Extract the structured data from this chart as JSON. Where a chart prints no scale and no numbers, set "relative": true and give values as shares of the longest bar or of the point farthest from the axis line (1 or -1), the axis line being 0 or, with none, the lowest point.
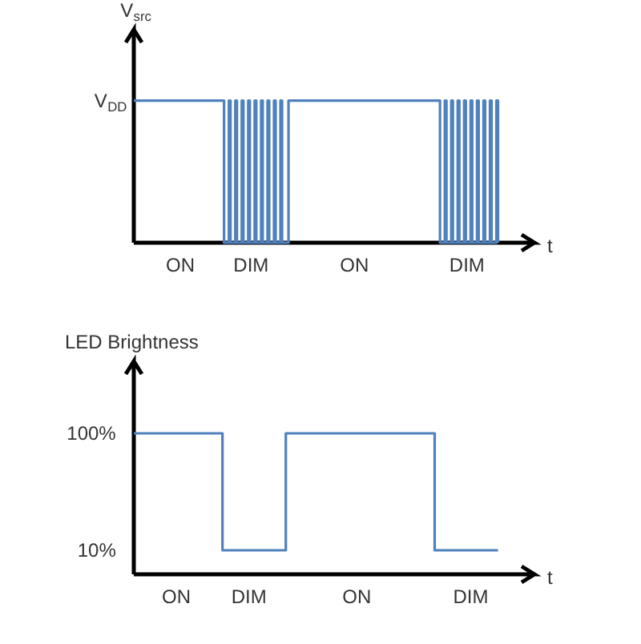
{
  "chart_data": [
    {
      "type": "step",
      "relative": true,
      "ylabel": "V$_{src}$",
      "xlabel": "t",
      "annotations": [
        "V$_{DD}$"
      ],
      "color": "#4f81bd",
      "categories": [
        null,
        null,
        null,
        null,
        null,
        null,
        null,
        null,
        null,
        null,
        null,
        null,
        null,
        null,
        null,
        null,
        null,
        null,
        null,
        null,
        null,
        null,
        null,
        null,
        null,
        null,
        null,
        null,
        "ON",
        null,
        null,
        null,
        null,
        null,
        null,
        null,
        null,
        null,
        null,
        null,
        null,
        null,
        null,
        null,
        null,
        null,
        null,
        null,
        null,
        null,
        null,
        null,
        null,
        null,
        null,
        null,
        null,
        null,
        null,
        null,
        null,
        null,
        null,
        null,
        null,
        null,
        null,
        null,
        null,
        null,
        null,
        null,
        null,
        null,
        "DIM",
        null,
        null,
        null,
        null,
        null,
        null,
        null,
        null,
        null,
        null,
        null,
        null,
        null,
        null,
        null,
        null,
        null,
        null,
        null,
        null,
        null,
        null,
        null,
        null,
        null,
        null,
        null,
        null,
        null,
        null,
        null,
        null,
        null,
        null,
        null,
        null,
        null,
        null,
        null,
        null,
        null,
        null,
        null,
        null,
        null,
        null,
        null,
        null,
        null,
        null,
        null,
        null,
        null,
        null,
        null,
        null,
        null,
        null,
        null,
        null,
        null,
        "ON",
        null,
        null,
        null,
        null,
        null,
        null,
        null,
        null,
        null,
        null,
        null,
        null,
        null,
        null,
        null,
        null,
        null,
        null,
        null,
        null,
        null,
        null,
        null,
        null,
        null,
        null,
        null,
        null,
        null,
        null,
        null,
        null,
        null,
        null,
        null,
        null,
        null,
        null,
        null,
        null,
        null,
        null,
        null,
        null,
        null,
        null,
        null,
        null,
        null,
        null,
        null,
        null,
        null,
        null,
        null,
        null,
        null,
        null,
        null,
        null,
        null,
        null,
        null,
        null,
        null,
        null,
        null,
        null,
        null,
        null,
        null,
        "DIM",
        null,
        null,
        null,
        null,
        null,
        null,
        null,
        null,
        null,
        null,
        null,
        null,
        null,
        null,
        null,
        null,
        null,
        null
      ],
      "values": [
        1,
        1,
        1,
        1,
        1,
        1,
        1,
        1,
        1,
        1,
        1,
        1,
        1,
        1,
        1,
        1,
        1,
        1,
        1,
        1,
        1,
        1,
        1,
        1,
        1,
        1,
        1,
        1,
        1,
        1,
        1,
        1,
        1,
        1,
        1,
        1,
        1,
        1,
        1,
        1,
        1,
        1,
        1,
        1,
        1,
        1,
        1,
        1,
        1,
        1,
        1,
        1,
        1,
        1,
        1,
        1,
        0,
        0,
        0,
        1,
        0,
        0,
        0,
        1,
        0,
        0,
        0,
        1,
        0,
        0,
        0,
        1,
        0,
        0,
        0,
        1,
        0,
        0,
        0,
        1,
        0,
        0,
        0,
        1,
        0,
        0,
        0,
        1,
        0,
        0,
        0,
        1,
        0,
        0,
        0,
        0,
        1,
        1,
        1,
        1,
        1,
        1,
        1,
        1,
        1,
        1,
        1,
        1,
        1,
        1,
        1,
        1,
        1,
        1,
        1,
        1,
        1,
        1,
        1,
        1,
        1,
        1,
        1,
        1,
        1,
        1,
        1,
        1,
        1,
        1,
        1,
        1,
        1,
        1,
        1,
        1,
        1,
        1,
        1,
        1,
        1,
        1,
        1,
        1,
        1,
        1,
        1,
        1,
        1,
        1,
        1,
        1,
        1,
        1,
        1,
        1,
        1,
        1,
        1,
        1,
        1,
        1,
        1,
        1,
        1,
        1,
        1,
        1,
        1,
        1,
        1,
        1,
        1,
        1,
        1,
        1,
        1,
        1,
        1,
        1,
        1,
        1,
        1,
        1,
        1,
        1,
        1,
        1,
        1,
        1,
        0,
        0,
        0,
        1,
        0,
        0,
        0,
        1,
        0,
        0,
        0,
        1,
        0,
        0,
        0,
        1,
        0,
        0,
        0,
        1,
        0,
        0,
        0,
        1,
        0,
        0,
        0,
        1,
        0,
        0,
        0,
        1,
        0,
        0,
        0,
        1,
        0
      ]
    },
    {
      "type": "step",
      "ylabel": "LED Brightness",
      "xlabel": "t",
      "color": "#4f81bd",
      "ylim": [
        -8.5,
        155.5
      ],
      "yticks": [
        {
          "value": 100,
          "label": "100%"
        },
        {
          "value": 10,
          "label": "10%"
        }
      ],
      "categories": [
        null,
        null,
        null,
        null,
        null,
        null,
        null,
        null,
        null,
        null,
        null,
        null,
        null,
        "ON",
        null,
        null,
        null,
        null,
        null,
        null,
        null,
        null,
        null,
        null,
        null,
        null,
        null,
        null,
        null,
        null,
        null,
        null,
        null,
        null,
        null,
        null,
        null,
        "DIM",
        null,
        null,
        null,
        null,
        null,
        null,
        null,
        null,
        null,
        null,
        null,
        null,
        null,
        null,
        null,
        null,
        null,
        null,
        null,
        null,
        null,
        null,
        null,
        null,
        null,
        null,
        null,
        null,
        null,
        null,
        null,
        null,
        "ON",
        null,
        null,
        null,
        null,
        null,
        null,
        null,
        null,
        null,
        null,
        null,
        null,
        null,
        null,
        null,
        null,
        null,
        null,
        null,
        null,
        null,
        null,
        null,
        null,
        null,
        null,
        null,
        null,
        null,
        null,
        null,
        null,
        null,
        null,
        null,
        null,
        "DIM",
        null,
        null,
        null,
        null,
        null,
        null,
        null,
        null
      ],
      "values": [
        100,
        100,
        100,
        100,
        100,
        100,
        100,
        100,
        100,
        100,
        100,
        100,
        100,
        100,
        100,
        100,
        100,
        100,
        100,
        100,
        100,
        100,
        100,
        100,
        100,
        100,
        100,
        100,
        10,
        10,
        10,
        10,
        10,
        10,
        10,
        10,
        10,
        10,
        10,
        10,
        10,
        10,
        10,
        10,
        10,
        10,
        10,
        10,
        100,
        100,
        100,
        100,
        100,
        100,
        100,
        100,
        100,
        100,
        100,
        100,
        100,
        100,
        100,
        100,
        100,
        100,
        100,
        100,
        100,
        100,
        100,
        100,
        100,
        100,
        100,
        100,
        100,
        100,
        100,
        100,
        100,
        100,
        100,
        100,
        100,
        100,
        100,
        100,
        100,
        100,
        100,
        100,
        100,
        100,
        100,
        10,
        10,
        10,
        10,
        10,
        10,
        10,
        10,
        10,
        10,
        10,
        10,
        10,
        10,
        10,
        10,
        10,
        10,
        10,
        10,
        10
      ]
    }
  ]
}
